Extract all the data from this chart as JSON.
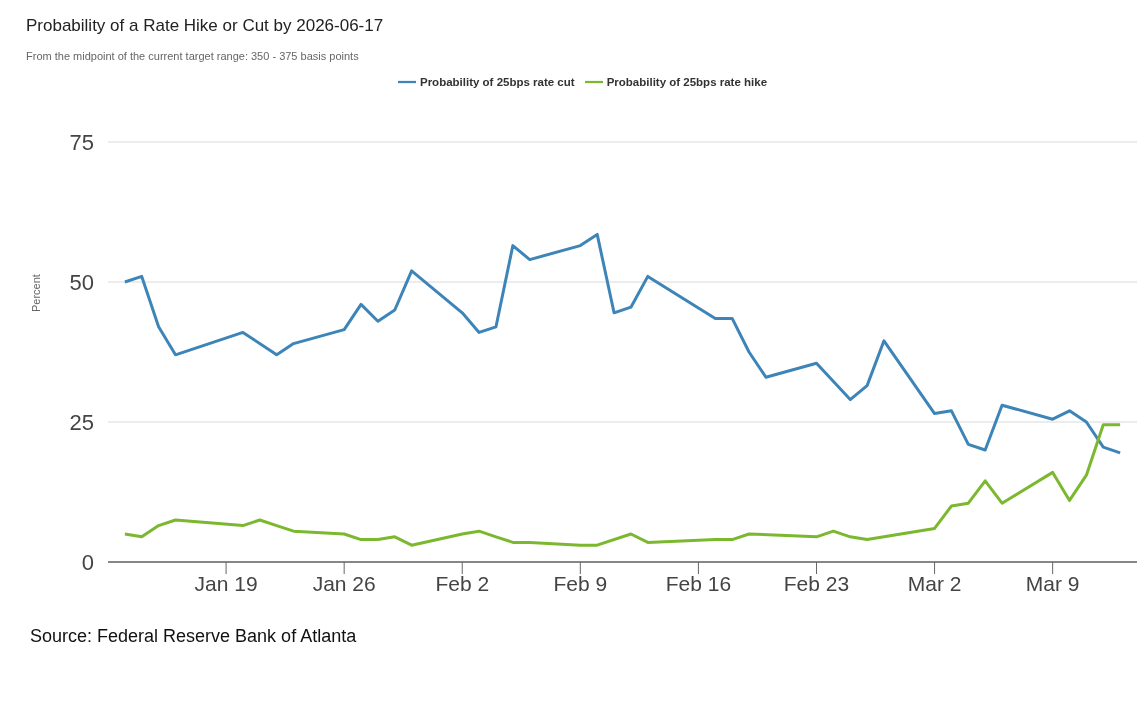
{
  "chart_data": {
    "type": "line",
    "title": "Probability of a Rate Hike or Cut by 2026-06-17",
    "subtitle": "From the midpoint of the current target range: 350 - 375 basis points",
    "ylabel": "Percent",
    "annotations": [
      "Source: Federal Reserve Bank of Atlanta"
    ],
    "xlim": [
      "--01-12",
      "--03-14"
    ],
    "xticks": [
      {
        "value": "--01-19",
        "label": "Jan 19"
      },
      {
        "value": "--01-26",
        "label": "Jan 26"
      },
      {
        "value": "--02-02",
        "label": "Feb 2"
      },
      {
        "value": "--02-09",
        "label": "Feb 9"
      },
      {
        "value": "--02-16",
        "label": "Feb 16"
      },
      {
        "value": "--02-23",
        "label": "Feb 23"
      },
      {
        "value": "--03-02",
        "label": "Mar 2"
      },
      {
        "value": "--03-09",
        "label": "Mar 9"
      }
    ],
    "ylim": [
      0,
      75
    ],
    "yticks": [
      0,
      25,
      50,
      75
    ],
    "grid": "y",
    "legend": "top",
    "marker": "none",
    "line_style": "solid",
    "series": [
      {
        "name": "Probability of 25bps rate cut",
        "color": "#3d85b8",
        "x": [
          "--01-13",
          "--01-14",
          "--01-15",
          "--01-16",
          "--01-20",
          "--01-22",
          "--01-23",
          "--01-26",
          "--01-27",
          "--01-28",
          "--01-29",
          "--01-30",
          "--02-02",
          "--02-03",
          "--02-04",
          "--02-05",
          "--02-06",
          "--02-09",
          "--02-10",
          "--02-11",
          "--02-12",
          "--02-13",
          "--02-17",
          "--02-18",
          "--02-19",
          "--02-20",
          "--02-23",
          "--02-25",
          "--02-26",
          "--02-27",
          "--03-02",
          "--03-03",
          "--03-04",
          "--03-05",
          "--03-06",
          "--03-09",
          "--03-10",
          "--03-11",
          "--03-12",
          "--03-13"
        ],
        "values": [
          50,
          51,
          42,
          37,
          41,
          37,
          39,
          41.5,
          46,
          43,
          45,
          52,
          44.5,
          41,
          42,
          56.5,
          54,
          56.5,
          58.5,
          44.5,
          45.5,
          51,
          43.5,
          43.5,
          37.5,
          33,
          35.5,
          29,
          31.5,
          39.5,
          26.5,
          27,
          21,
          20,
          28,
          25.5,
          27,
          25,
          20.5,
          19.5
        ]
      },
      {
        "name": "Probability of 25bps rate hike",
        "color": "#7cb82f",
        "x": [
          "--01-13",
          "--01-14",
          "--01-15",
          "--01-16",
          "--01-20",
          "--01-21",
          "--01-22",
          "--01-23",
          "--01-26",
          "--01-27",
          "--01-28",
          "--01-29",
          "--01-30",
          "--02-02",
          "--02-03",
          "--02-04",
          "--02-05",
          "--02-06",
          "--02-09",
          "--02-10",
          "--02-12",
          "--02-13",
          "--02-17",
          "--02-18",
          "--02-19",
          "--02-23",
          "--02-24",
          "--02-25",
          "--02-26",
          "--02-27",
          "--03-02",
          "--03-03",
          "--03-04",
          "--03-05",
          "--03-06",
          "--03-09",
          "--03-10",
          "--03-11",
          "--03-12",
          "--03-13"
        ],
        "values": [
          5,
          4.5,
          6.5,
          7.5,
          6.5,
          7.5,
          6.5,
          5.5,
          5,
          4,
          4,
          4.5,
          3,
          5,
          5.5,
          4.5,
          3.5,
          3.5,
          3,
          3,
          5,
          3.5,
          4,
          4,
          5,
          4.5,
          5.5,
          4.5,
          4,
          4.5,
          6,
          10,
          10.5,
          14.5,
          10.5,
          16,
          11,
          15.5,
          24.5,
          24.5
        ]
      }
    ]
  }
}
